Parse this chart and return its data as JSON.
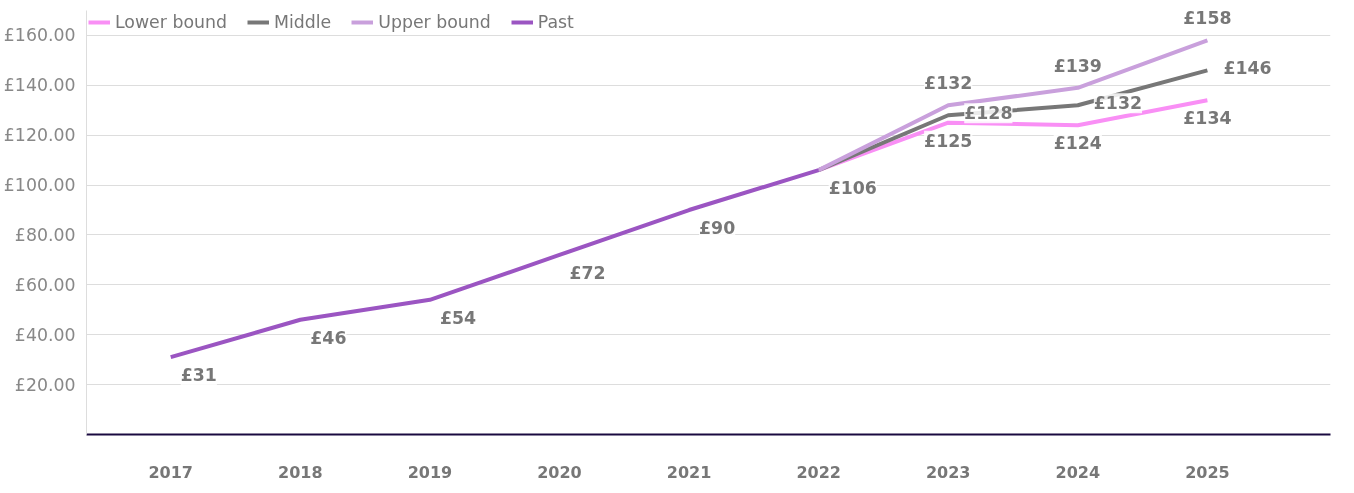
{
  "chart_data": {
    "type": "line",
    "categories": [
      "2017",
      "2018",
      "2019",
      "2020",
      "2021",
      "2022",
      "2023",
      "2024",
      "2025"
    ],
    "series": [
      {
        "name": "Lower bound",
        "color": "#f98ff5",
        "values": [
          null,
          null,
          null,
          null,
          null,
          106,
          125,
          124,
          134
        ],
        "value_labels": [
          null,
          null,
          null,
          null,
          null,
          null,
          "£125",
          "£124",
          "£134"
        ]
      },
      {
        "name": "Middle",
        "color": "#777777",
        "values": [
          null,
          null,
          null,
          null,
          null,
          106,
          128,
          132,
          146
        ],
        "value_labels": [
          null,
          null,
          null,
          null,
          null,
          null,
          "£128",
          "£132",
          "£146"
        ]
      },
      {
        "name": "Upper bound",
        "color": "#c9a0dc",
        "values": [
          null,
          null,
          null,
          null,
          null,
          106,
          132,
          139,
          158
        ],
        "value_labels": [
          null,
          null,
          null,
          null,
          null,
          null,
          "£132",
          "£139",
          "£158"
        ]
      },
      {
        "name": "Past",
        "color": "#9b55c2",
        "values": [
          31,
          46,
          54,
          72,
          90,
          106,
          null,
          null,
          null
        ],
        "value_labels": [
          "£31",
          "£46",
          "£54",
          "£72",
          "£90",
          "£106",
          null,
          null,
          null
        ]
      }
    ],
    "ylim": [
      0,
      170
    ],
    "yticks": [
      {
        "value": 20,
        "label": "£20.00"
      },
      {
        "value": 40,
        "label": "£40.00"
      },
      {
        "value": 60,
        "label": "£60.00"
      },
      {
        "value": 80,
        "label": "£80.00"
      },
      {
        "value": 100,
        "label": "£100.00"
      },
      {
        "value": 120,
        "label": "£120.00"
      },
      {
        "value": 140,
        "label": "£140.00"
      },
      {
        "value": 160,
        "label": "£160.00"
      }
    ],
    "grid": "y",
    "legend": "top left",
    "marker": "none",
    "line_style": "solid"
  }
}
